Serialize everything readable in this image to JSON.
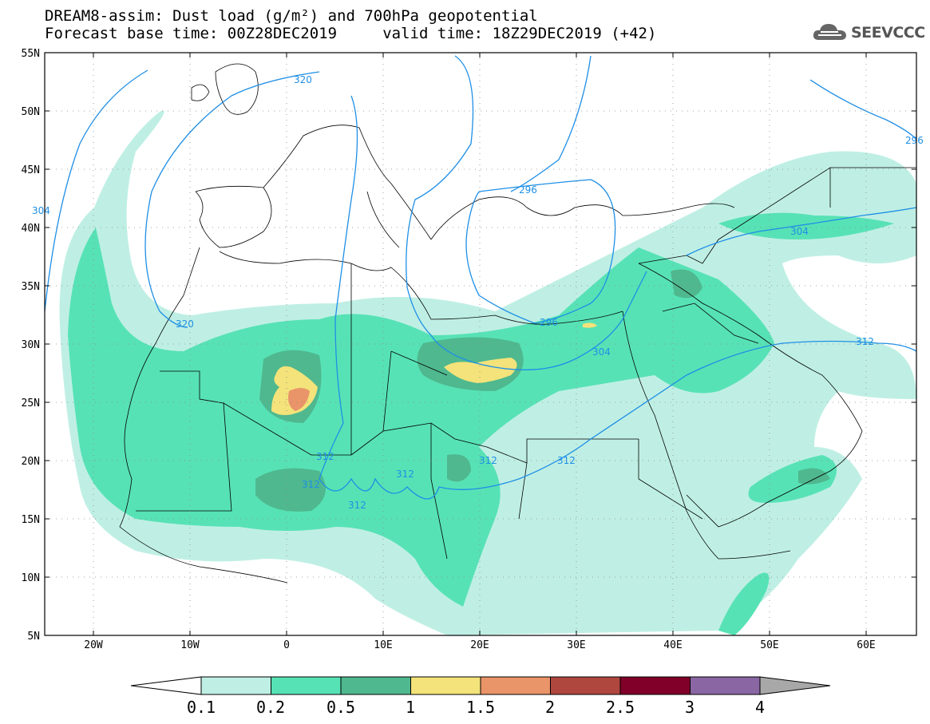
{
  "header": {
    "line1": "DREAM8-assim: Dust load (g/m²) and 700hPa geopotential",
    "line2": "Forecast base time: 00Z28DEC2019     valid time: 18Z29DEC2019 (+42)"
  },
  "logo": {
    "text": "SEEVCCC",
    "icon": "cloud-icon"
  },
  "axes": {
    "lat_labels": [
      "55N",
      "50N",
      "45N",
      "40N",
      "35N",
      "30N",
      "25N",
      "20N",
      "15N",
      "10N",
      "5N"
    ],
    "lon_labels": [
      "20W",
      "10W",
      "0",
      "10E",
      "20E",
      "30E",
      "40E",
      "50E",
      "60E"
    ]
  },
  "contour_labels": [
    "320",
    "320",
    "304",
    "296",
    "296",
    "304",
    "312",
    "312",
    "312",
    "312",
    "312",
    "312",
    "312",
    "304",
    "296"
  ],
  "colorbar": {
    "labels": [
      "0.1",
      "0.2",
      "0.5",
      "1",
      "1.5",
      "2",
      "2.5",
      "3",
      "4"
    ],
    "colors": [
      "#bfefe4",
      "#57e2b5",
      "#4fb88f",
      "#f3e37a",
      "#e99469",
      "#b0473f",
      "#800029",
      "#8a66a3",
      "#a8a8a8"
    ]
  },
  "colors": {
    "dust_0_1": "#bfefe4",
    "dust_0_2": "#57e2b5",
    "dust_0_5": "#4fb88f",
    "dust_1": "#f3e37a",
    "dust_1_5": "#e99469",
    "dust_2": "#b0473f",
    "contour": "#1f8fe6"
  }
}
